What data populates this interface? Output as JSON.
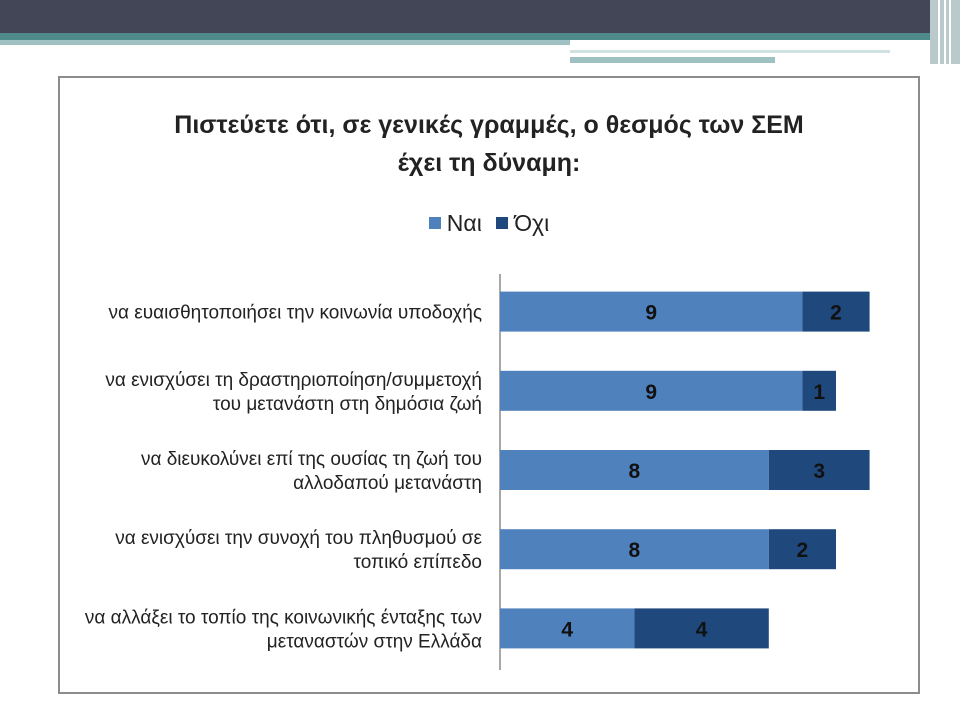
{
  "colors": {
    "yes": "#4f81bd",
    "no": "#1f497d"
  },
  "chart_data": {
    "type": "bar",
    "orientation": "horizontal",
    "stacked": true,
    "title": "Πιστεύετε ότι, σε γενικές γραμμές, ο θεσμός των ΣΕΜ έχει τη δύναμη:",
    "legend_position": "top",
    "grid": false,
    "xlim": [
      0,
      11
    ],
    "categories": [
      [
        "να ευαισθητοποιήσει την κοινωνία υποδοχής"
      ],
      [
        "να ενισχύσει τη δραστηριοποίηση/συμμετοχή",
        "του μετανάστη στη δημόσια ζωή"
      ],
      [
        "να διευκολύνει επί της ουσίας τη ζωή του",
        "αλλοδαπού μετανάστη"
      ],
      [
        "να ενισχύσει την συνοχή του πληθυσμού σε",
        "τοπικό επίπεδο"
      ],
      [
        "να αλλάξει το τοπίο της κοινωνικής ένταξης των",
        "μεταναστών στην Ελλάδα"
      ]
    ],
    "series": [
      {
        "name": "Ναι",
        "values": [
          9,
          9,
          8,
          8,
          4
        ]
      },
      {
        "name": "Όχι",
        "values": [
          2,
          1,
          3,
          2,
          4
        ]
      }
    ]
  }
}
